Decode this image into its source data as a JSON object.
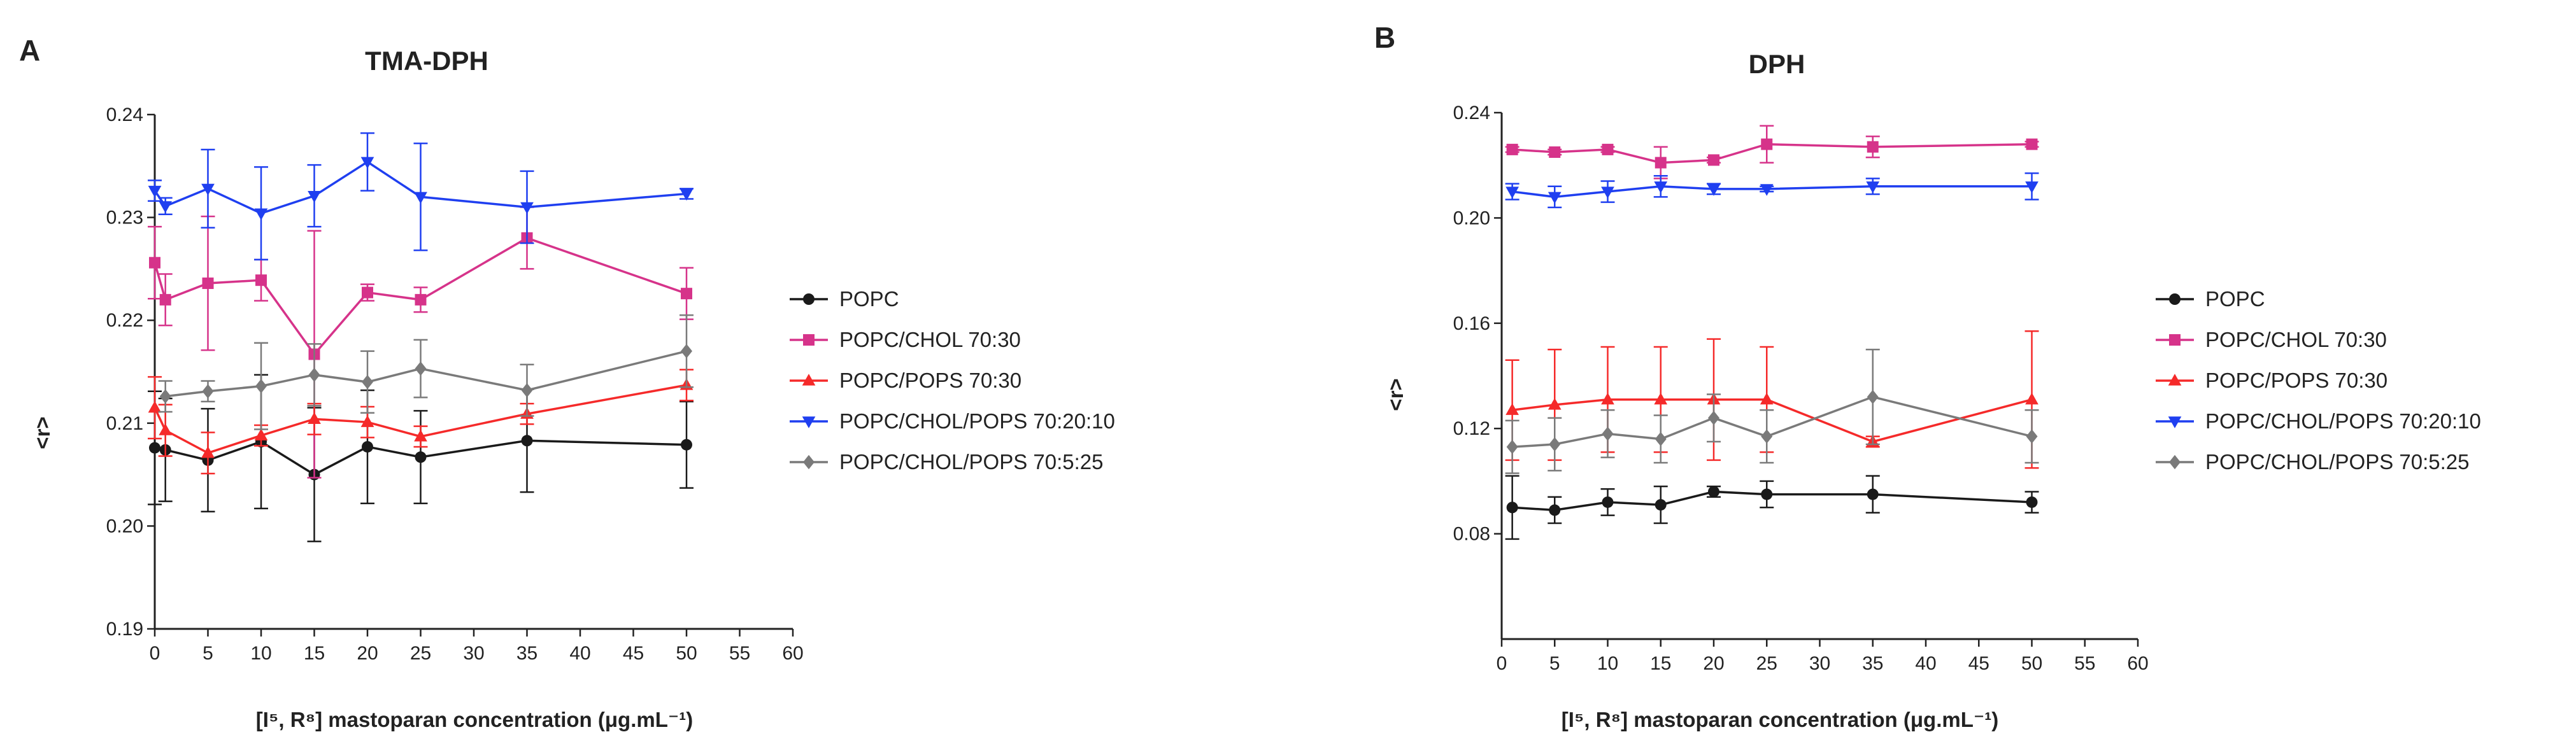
{
  "chart_data": [
    {
      "type": "line",
      "panel": "A",
      "title": "TMA-DPH",
      "xlabel": "[I⁵, R⁸] mastoparan concentration  (μg.mL⁻¹)",
      "ylabel": "<r>",
      "xlim": [
        0,
        60
      ],
      "ylim": [
        0.19,
        0.24
      ],
      "xticks": [
        "0",
        "5",
        "10",
        "15",
        "20",
        "25",
        "30",
        "35",
        "40",
        "45",
        "50",
        "55",
        "60"
      ],
      "yticks": [
        "0.19",
        "0.20",
        "0.21",
        "0.22",
        "0.23",
        "0.24"
      ],
      "legend_position": "right",
      "series": [
        {
          "name": "POPC",
          "color": "#1a1a1a",
          "marker": "circle",
          "x": [
            0,
            1,
            5,
            10,
            15,
            20,
            25,
            35,
            50
          ],
          "y": [
            0.2076,
            0.2074,
            0.2064,
            0.2082,
            0.205,
            0.2077,
            0.2067,
            0.2083,
            0.2079
          ],
          "err": [
            0.0055,
            0.005,
            0.005,
            0.0065,
            0.0065,
            0.0055,
            0.0045,
            0.005,
            0.0042
          ]
        },
        {
          "name": "POPC/CHOL 70:30",
          "color": "#d6338a",
          "marker": "square",
          "x": [
            0,
            1,
            5,
            10,
            15,
            20,
            25,
            35,
            50
          ],
          "y": [
            0.2256,
            0.222,
            0.2236,
            0.2239,
            0.2167,
            0.2227,
            0.222,
            0.228,
            0.2226
          ],
          "err": [
            0.0035,
            0.0025,
            0.0065,
            0.002,
            0.012,
            0.0008,
            0.0012,
            0.003,
            0.0025
          ]
        },
        {
          "name": "POPC/POPS 70:30",
          "color": "#f52a2a",
          "marker": "triangle",
          "x": [
            0,
            1,
            5,
            10,
            15,
            20,
            25,
            35,
            50
          ],
          "y": [
            0.2115,
            0.2093,
            0.2071,
            0.2088,
            0.2104,
            0.2101,
            0.2087,
            0.2109,
            0.2137
          ],
          "err": [
            0.003,
            0.0025,
            0.002,
            0.001,
            0.0015,
            0.0015,
            0.001,
            0.001,
            0.0015
          ]
        },
        {
          "name": "POPC/CHOL/POPS 70:20:10",
          "color": "#1f3ff0",
          "marker": "triangle-down",
          "x": [
            0,
            1,
            5,
            10,
            15,
            20,
            25,
            35,
            50
          ],
          "y": [
            0.2326,
            0.2311,
            0.2328,
            0.2304,
            0.2321,
            0.2354,
            0.232,
            0.231,
            0.2323
          ],
          "err": [
            0.001,
            0.0008,
            0.0038,
            0.0045,
            0.003,
            0.0028,
            0.0052,
            0.0035,
            0.0005
          ]
        },
        {
          "name": "POPC/CHOL/POPS 70:5:25",
          "color": "#7a7a7a",
          "marker": "diamond",
          "x": [
            1,
            5,
            10,
            15,
            20,
            25,
            35,
            50
          ],
          "y": [
            0.2126,
            0.2131,
            0.2136,
            0.2147,
            0.214,
            0.2153,
            0.2132,
            0.217
          ],
          "err": [
            0.0015,
            0.001,
            0.0042,
            0.003,
            0.003,
            0.0028,
            0.0025,
            0.0035
          ]
        }
      ]
    },
    {
      "type": "line",
      "panel": "B",
      "title": "DPH",
      "xlabel": "[I⁵, R⁸] mastoparan concentration  (μg.mL⁻¹)",
      "ylabel": "<r>",
      "xlim": [
        0,
        60
      ],
      "ylim": [
        0.04,
        0.24
      ],
      "xticks": [
        "0",
        "5",
        "10",
        "15",
        "20",
        "25",
        "30",
        "35",
        "40",
        "45",
        "50",
        "55",
        "60"
      ],
      "yticks": [
        "0.08",
        "0.12",
        "0.16",
        "0.20",
        "0.24"
      ],
      "legend_position": "right",
      "series": [
        {
          "name": "POPC",
          "color": "#1a1a1a",
          "marker": "circle",
          "x": [
            1,
            5,
            10,
            15,
            20,
            25,
            35,
            50
          ],
          "y": [
            0.09,
            0.089,
            0.092,
            0.091,
            0.096,
            0.095,
            0.095,
            0.092
          ],
          "err": [
            0.012,
            0.005,
            0.005,
            0.007,
            0.002,
            0.005,
            0.007,
            0.004
          ]
        },
        {
          "name": "POPC/CHOL 70:30",
          "color": "#d6338a",
          "marker": "square",
          "x": [
            1,
            5,
            10,
            15,
            20,
            25,
            35,
            50
          ],
          "y": [
            0.226,
            0.225,
            0.226,
            0.221,
            0.222,
            0.228,
            0.227,
            0.228
          ],
          "err": [
            0.001,
            0.001,
            0.001,
            0.006,
            0.001,
            0.007,
            0.004,
            0.001
          ]
        },
        {
          "name": "POPC/POPS 70:30",
          "color": "#f52a2a",
          "marker": "triangle",
          "x": [
            1,
            5,
            10,
            15,
            20,
            25,
            35,
            50
          ],
          "y": [
            0.127,
            0.129,
            0.131,
            0.131,
            0.131,
            0.131,
            0.115,
            0.131
          ],
          "err": [
            0.019,
            0.021,
            0.02,
            0.02,
            0.023,
            0.02,
            0.002,
            0.026
          ]
        },
        {
          "name": "POPC/CHOL/POPS 70:20:10",
          "color": "#1f3ff0",
          "marker": "triangle-down",
          "x": [
            1,
            5,
            10,
            15,
            20,
            25,
            35,
            50
          ],
          "y": [
            0.21,
            0.208,
            0.21,
            0.212,
            0.211,
            0.211,
            0.212,
            0.212
          ],
          "err": [
            0.003,
            0.004,
            0.004,
            0.004,
            0.002,
            0.001,
            0.003,
            0.005
          ]
        },
        {
          "name": "POPC/CHOL/POPS 70:5:25",
          "color": "#7a7a7a",
          "marker": "diamond",
          "x": [
            1,
            5,
            10,
            15,
            20,
            25,
            35,
            50
          ],
          "y": [
            0.113,
            0.114,
            0.118,
            0.116,
            0.124,
            0.117,
            0.132,
            0.117
          ],
          "err": [
            0.01,
            0.01,
            0.009,
            0.009,
            0.009,
            0.01,
            0.018,
            0.01
          ]
        }
      ]
    }
  ]
}
